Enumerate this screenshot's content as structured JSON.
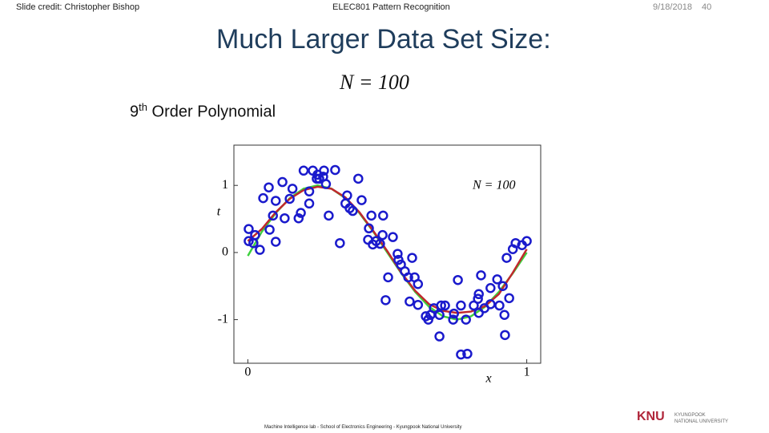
{
  "header": {
    "credit": "Slide credit: Christopher Bishop",
    "course": "ELEC801 Pattern Recognition",
    "date": "9/18/2018",
    "page": "40"
  },
  "title": "Much Larger Data Set Size:",
  "formula": "N = 100",
  "subtitle": {
    "number": "9",
    "suffix": "th",
    "text": "Order Polynomial"
  },
  "footer": "Machine Intelligence lab - School of Electronics Engineering - Kyungpook National University",
  "logo": {
    "mark": "KNU",
    "line1": "KYUNGPOOK",
    "line2": "NATIONAL UNIVERSITY"
  },
  "chart_data": {
    "type": "scatter",
    "annotation": "N = 100",
    "xlabel": "x",
    "ylabel": "t",
    "xlim": [
      -0.05,
      1.05
    ],
    "ylim": [
      -1.65,
      1.6
    ],
    "xticks": [
      0,
      1
    ],
    "yticks": [
      -1,
      0,
      1
    ],
    "series": [
      {
        "type": "line",
        "color": "#3ed13e",
        "x": [
          0,
          0.05,
          0.1,
          0.15,
          0.2,
          0.25,
          0.3,
          0.35,
          0.4,
          0.45,
          0.5,
          0.55,
          0.6,
          0.65,
          0.7,
          0.75,
          0.8,
          0.85,
          0.9,
          0.95,
          1
        ],
        "values": [
          -0.05,
          0.309,
          0.588,
          0.809,
          0.951,
          1,
          0.951,
          0.809,
          0.588,
          0.309,
          0,
          -0.309,
          -0.588,
          -0.809,
          -0.951,
          -1,
          -0.951,
          -0.809,
          -0.588,
          -0.309,
          0
        ]
      },
      {
        "type": "line",
        "color": "#c0282d",
        "x": [
          0,
          0.05,
          0.1,
          0.15,
          0.2,
          0.25,
          0.3,
          0.35,
          0.4,
          0.45,
          0.5,
          0.55,
          0.6,
          0.65,
          0.7,
          0.75,
          0.8,
          0.85,
          0.9,
          0.95,
          1
        ],
        "values": [
          0.17,
          0.35,
          0.6,
          0.8,
          0.93,
          0.98,
          0.95,
          0.82,
          0.6,
          0.32,
          0.02,
          -0.3,
          -0.57,
          -0.77,
          -0.87,
          -0.9,
          -0.88,
          -0.8,
          -0.62,
          -0.3,
          0.05
        ]
      },
      {
        "type": "scatter",
        "color": "#1a1acc",
        "x": [
          0.003,
          0.026,
          0.02,
          0.043,
          0.1,
          0.078,
          0.055,
          0.09,
          0.075,
          0.124,
          0.132,
          0.1,
          0.15,
          0.16,
          0.182,
          0.19,
          0.2,
          0.22,
          0.22,
          0.233,
          0.25,
          0.256,
          0.273,
          0.27,
          0.28,
          0.29,
          0.313,
          0.33,
          0.35,
          0.356,
          0.365,
          0.376,
          0.396,
          0.408,
          0.434,
          0.443,
          0.431,
          0.448,
          0.46,
          0.474,
          0.485,
          0.483,
          0.52,
          0.503,
          0.494,
          0.537,
          0.549,
          0.563,
          0.589,
          0.575,
          0.58,
          0.598,
          0.61,
          0.61,
          0.638,
          0.647,
          0.667,
          0.655,
          0.687,
          0.693,
          0.707,
          0.736,
          0.753,
          0.764,
          0.764,
          0.787,
          0.782,
          0.81,
          0.825,
          0.836,
          0.848,
          0.87,
          0.87,
          0.894,
          0.902,
          0.914,
          0.922,
          0.937,
          0.92,
          0.928,
          0.95,
          0.96,
          0.983,
          1.0,
          0.828,
          0.687,
          0.739,
          0.828,
          0.54,
          0.247,
          0.003
        ],
        "values": [
          0.35,
          0.26,
          0.14,
          0.04,
          0.16,
          0.34,
          0.81,
          0.55,
          0.97,
          1.05,
          0.51,
          0.77,
          0.8,
          0.95,
          0.51,
          0.59,
          1.22,
          0.91,
          0.73,
          1.22,
          1.16,
          1.1,
          1.22,
          1.13,
          1.02,
          0.55,
          1.23,
          0.14,
          0.73,
          0.85,
          0.66,
          0.62,
          1.1,
          0.78,
          0.36,
          0.55,
          0.19,
          0.12,
          0.17,
          0.13,
          0.55,
          0.26,
          0.23,
          -0.37,
          -0.71,
          -0.02,
          -0.18,
          -0.28,
          -0.08,
          -0.37,
          -0.73,
          -0.37,
          -0.47,
          -0.78,
          -0.95,
          -1.0,
          -0.83,
          -0.93,
          -1.25,
          -0.79,
          -0.79,
          -1.0,
          -0.41,
          -0.79,
          -1.52,
          -1.51,
          -1.0,
          -0.79,
          -0.69,
          -0.34,
          -0.83,
          -0.53,
          -0.77,
          -0.4,
          -0.79,
          -0.5,
          -1.23,
          -0.68,
          -0.93,
          -0.08,
          0.05,
          0.14,
          0.11,
          0.17,
          -0.62,
          -0.93,
          -0.91,
          -0.9,
          -0.11,
          1.1,
          0.17
        ]
      }
    ]
  }
}
